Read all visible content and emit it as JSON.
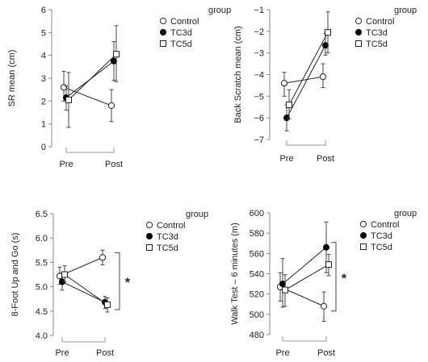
{
  "chart_data": [
    {
      "type": "line",
      "ylabel": "SR mean (cm)",
      "categories": [
        "Pre",
        "Post"
      ],
      "ylim": [
        0,
        6
      ],
      "yticks": [
        0,
        1,
        2,
        3,
        4,
        5,
        6
      ],
      "yticks_labels": [
        "0",
        "1",
        "2",
        "3",
        "4",
        "5",
        "6"
      ],
      "legend_title": "group",
      "legend_position": "top-right",
      "series": [
        {
          "name": "Control",
          "marker": "open-circle",
          "values": [
            2.6,
            1.8
          ],
          "err_low": [
            2.0,
            1.1
          ],
          "err_high": [
            3.3,
            2.5
          ]
        },
        {
          "name": "TC3d",
          "marker": "filled-circle",
          "values": [
            2.15,
            3.75
          ],
          "err_low": [
            1.6,
            2.9
          ],
          "err_high": [
            2.65,
            4.6
          ]
        },
        {
          "name": "TC5d",
          "marker": "open-square",
          "values": [
            2.05,
            4.05
          ],
          "err_low": [
            0.85,
            2.85
          ],
          "err_high": [
            3.25,
            5.3
          ]
        }
      ],
      "annotation": ""
    },
    {
      "type": "line",
      "ylabel": "Back Scratch mean (cm)",
      "categories": [
        "Pre",
        "Post"
      ],
      "ylim": [
        -7,
        -1
      ],
      "yticks": [
        -7,
        -6,
        -5,
        -4,
        -3,
        -2,
        -1
      ],
      "yticks_labels": [
        "−7",
        "−6",
        "−5",
        "−4",
        "−3",
        "−2",
        "−1"
      ],
      "legend_title": "group",
      "legend_position": "top-right",
      "series": [
        {
          "name": "Control",
          "marker": "open-circle",
          "values": [
            -4.4,
            -4.1
          ],
          "err_low": [
            -5.0,
            -4.6
          ],
          "err_high": [
            -3.9,
            -3.5
          ]
        },
        {
          "name": "TC3d",
          "marker": "filled-circle",
          "values": [
            -6.0,
            -2.65
          ],
          "err_low": [
            -6.6,
            -3.1
          ],
          "err_high": [
            -5.4,
            -2.1
          ]
        },
        {
          "name": "TC5d",
          "marker": "open-square",
          "values": [
            -5.4,
            -2.05
          ],
          "err_low": [
            -6.05,
            -3.0
          ],
          "err_high": [
            -4.7,
            -1.1
          ]
        }
      ],
      "annotation": ""
    },
    {
      "type": "line",
      "ylabel": "8-Foot Up and Go (s)",
      "categories": [
        "Pre",
        "Post"
      ],
      "ylim": [
        4.0,
        6.5
      ],
      "yticks": [
        4.0,
        4.5,
        5.0,
        5.5,
        6.0,
        6.5
      ],
      "yticks_labels": [
        "4.0",
        "4.5",
        "5.0",
        "5.5",
        "6.0",
        "6.5"
      ],
      "legend_title": "group",
      "legend_position": "top-right",
      "series": [
        {
          "name": "Control",
          "marker": "open-circle",
          "values": [
            5.22,
            5.6
          ],
          "err_low": [
            5.05,
            5.45
          ],
          "err_high": [
            5.4,
            5.75
          ]
        },
        {
          "name": "TC3d",
          "marker": "filled-circle",
          "values": [
            5.1,
            4.68
          ],
          "err_low": [
            4.93,
            4.55
          ],
          "err_high": [
            5.27,
            4.8
          ]
        },
        {
          "name": "TC5d",
          "marker": "open-square",
          "values": [
            5.25,
            4.63
          ],
          "err_low": [
            5.1,
            4.48
          ],
          "err_high": [
            5.43,
            4.77
          ]
        }
      ],
      "annotation": "*"
    },
    {
      "type": "line",
      "ylabel": "Walk Test – 6 minutes (m)",
      "categories": [
        "Pre",
        "Post"
      ],
      "ylim": [
        480,
        600
      ],
      "yticks": [
        480,
        500,
        520,
        540,
        560,
        580,
        600
      ],
      "yticks_labels": [
        "480",
        "500",
        "520",
        "540",
        "560",
        "580",
        "600"
      ],
      "legend_title": "group",
      "legend_position": "top-right",
      "series": [
        {
          "name": "Control",
          "marker": "open-circle",
          "values": [
            527,
            508
          ],
          "err_low": [
            513,
            493
          ],
          "err_high": [
            541,
            522
          ]
        },
        {
          "name": "TC3d",
          "marker": "filled-circle",
          "values": [
            530,
            566
          ],
          "err_low": [
            507,
            541
          ],
          "err_high": [
            555,
            591
          ]
        },
        {
          "name": "TC5d",
          "marker": "open-square",
          "values": [
            524,
            549
          ],
          "err_low": [
            508,
            538
          ],
          "err_high": [
            539,
            559
          ]
        }
      ],
      "annotation": "*"
    }
  ]
}
